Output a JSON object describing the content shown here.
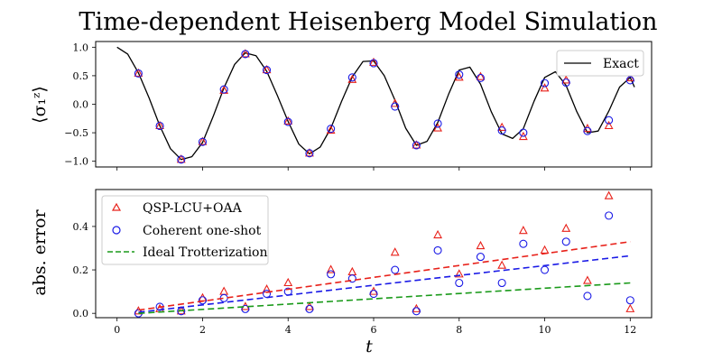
{
  "chart_data": [
    {
      "type": "line",
      "title": "Time-dependent Heisenberg Model Simulation",
      "ylabel": "⟨σ₁ᶻ⟩",
      "xlabel": "",
      "xlim": [
        -0.5,
        12.5
      ],
      "ylim": [
        -1.1,
        1.1
      ],
      "yticks": [
        1.0,
        0.5,
        0.0,
        -0.5,
        -1.0
      ],
      "ytick_labels": [
        "1.0",
        "0.5",
        "0.0",
        "−0.5",
        "−1.0"
      ],
      "legend": {
        "placement": "top-right",
        "entries": [
          "Exact"
        ]
      },
      "series": [
        {
          "name": "Exact",
          "style": "line",
          "color": "#000000",
          "x": [
            0.0,
            0.25,
            0.5,
            0.75,
            1.0,
            1.25,
            1.5,
            1.75,
            2.0,
            2.25,
            2.5,
            2.75,
            3.0,
            3.25,
            3.5,
            3.75,
            4.0,
            4.25,
            4.5,
            4.75,
            5.0,
            5.25,
            5.5,
            5.75,
            6.0,
            6.25,
            6.5,
            6.75,
            7.0,
            7.25,
            7.5,
            7.75,
            8.0,
            8.25,
            8.5,
            8.75,
            9.0,
            9.25,
            9.5,
            9.75,
            10.0,
            10.25,
            10.5,
            10.75,
            11.0,
            11.25,
            11.5,
            11.75,
            12.0,
            12.1
          ],
          "y": [
            1.0,
            0.88,
            0.55,
            0.11,
            -0.38,
            -0.78,
            -0.97,
            -0.92,
            -0.67,
            -0.21,
            0.29,
            0.7,
            0.9,
            0.85,
            0.58,
            0.15,
            -0.3,
            -0.7,
            -0.87,
            -0.75,
            -0.42,
            0.05,
            0.48,
            0.75,
            0.76,
            0.5,
            0.07,
            -0.42,
            -0.72,
            -0.65,
            -0.32,
            0.17,
            0.6,
            0.65,
            0.35,
            -0.13,
            -0.52,
            -0.6,
            -0.43,
            0.05,
            0.47,
            0.57,
            0.33,
            -0.13,
            -0.5,
            -0.47,
            -0.12,
            0.3,
            0.47,
            0.3
          ]
        },
        {
          "name": "QSP-LCU+OAA",
          "style": "triangle",
          "color": "#e8211a",
          "x": [
            0.5,
            1.0,
            1.5,
            2.0,
            2.5,
            3.0,
            3.5,
            4.0,
            4.5,
            5.0,
            5.5,
            6.0,
            6.5,
            7.0,
            7.5,
            8.0,
            8.5,
            9.0,
            9.5,
            10.0,
            10.5,
            11.0,
            11.5,
            12.0
          ],
          "y": [
            0.54,
            -0.38,
            -0.97,
            -0.66,
            0.24,
            0.88,
            0.6,
            -0.3,
            -0.86,
            -0.46,
            0.43,
            0.73,
            0.01,
            -0.72,
            -0.42,
            0.47,
            0.48,
            -0.41,
            -0.57,
            0.28,
            0.42,
            -0.43,
            -0.38,
            0.46
          ]
        },
        {
          "name": "Coherent one-shot",
          "style": "circle",
          "color": "#1a1ae6",
          "x": [
            0.5,
            1.0,
            1.5,
            2.0,
            2.5,
            3.0,
            3.5,
            4.0,
            4.5,
            5.0,
            5.5,
            6.0,
            6.5,
            7.0,
            7.5,
            8.0,
            8.5,
            9.0,
            9.5,
            10.0,
            10.5,
            11.0,
            11.5,
            12.0
          ],
          "y": [
            0.54,
            -0.38,
            -0.97,
            -0.66,
            0.26,
            0.88,
            0.6,
            -0.31,
            -0.86,
            -0.43,
            0.47,
            0.72,
            -0.04,
            -0.72,
            -0.34,
            0.52,
            0.46,
            -0.46,
            -0.5,
            0.37,
            0.38,
            -0.47,
            -0.28,
            0.42
          ]
        }
      ]
    },
    {
      "type": "scatter",
      "title": "",
      "xlabel": "t",
      "ylabel": "abs. error",
      "xlim": [
        -0.5,
        12.5
      ],
      "ylim": [
        -0.02,
        0.57
      ],
      "xticks": [
        0,
        2,
        4,
        6,
        8,
        10,
        12
      ],
      "xtick_labels": [
        "0",
        "2",
        "4",
        "6",
        "8",
        "10",
        "12"
      ],
      "yticks": [
        0.0,
        0.2,
        0.4
      ],
      "ytick_labels": [
        "0.0",
        "0.2",
        "0.4"
      ],
      "legend": {
        "placement": "top-left",
        "entries": [
          "QSP-LCU+OAA",
          "Coherent one-shot",
          "Ideal Trotterization"
        ]
      },
      "series": [
        {
          "name": "QSP-LCU+OAA",
          "style": "triangle",
          "color": "#e8211a",
          "x": [
            0.5,
            1.0,
            1.5,
            2.0,
            2.5,
            3.0,
            3.5,
            4.0,
            4.5,
            5.0,
            5.5,
            6.0,
            6.5,
            7.0,
            7.5,
            8.0,
            8.5,
            9.0,
            9.5,
            10.0,
            10.5,
            11.0,
            11.5,
            12.0
          ],
          "y": [
            0.01,
            0.02,
            0.01,
            0.07,
            0.1,
            0.03,
            0.11,
            0.14,
            0.03,
            0.2,
            0.19,
            0.1,
            0.28,
            0.02,
            0.36,
            0.18,
            0.31,
            0.22,
            0.38,
            0.29,
            0.39,
            0.15,
            0.54,
            0.02
          ]
        },
        {
          "name": "Coherent one-shot",
          "style": "circle",
          "color": "#1a1ae6",
          "x": [
            0.5,
            1.0,
            1.5,
            2.0,
            2.5,
            3.0,
            3.5,
            4.0,
            4.5,
            5.0,
            5.5,
            6.0,
            6.5,
            7.0,
            7.5,
            8.0,
            8.5,
            9.0,
            9.5,
            10.0,
            10.5,
            11.0,
            11.5,
            12.0
          ],
          "y": [
            0.0,
            0.03,
            0.01,
            0.06,
            0.07,
            0.02,
            0.09,
            0.1,
            0.02,
            0.18,
            0.16,
            0.09,
            0.2,
            0.01,
            0.29,
            0.14,
            0.26,
            0.14,
            0.32,
            0.2,
            0.33,
            0.08,
            0.45,
            0.06
          ]
        },
        {
          "name": "QSP-LCU+OAA trend",
          "style": "dashed",
          "color": "#e8211a",
          "x": [
            0.5,
            12.0
          ],
          "y": [
            0.015,
            0.33
          ]
        },
        {
          "name": "Coherent one-shot trend",
          "style": "dashed",
          "color": "#1a1ae6",
          "x": [
            0.5,
            12.0
          ],
          "y": [
            0.005,
            0.265
          ]
        },
        {
          "name": "Ideal Trotterization",
          "style": "dashed",
          "color": "#1a9a1a",
          "x": [
            0.5,
            12.0
          ],
          "y": [
            0.0,
            0.14
          ]
        }
      ]
    }
  ]
}
